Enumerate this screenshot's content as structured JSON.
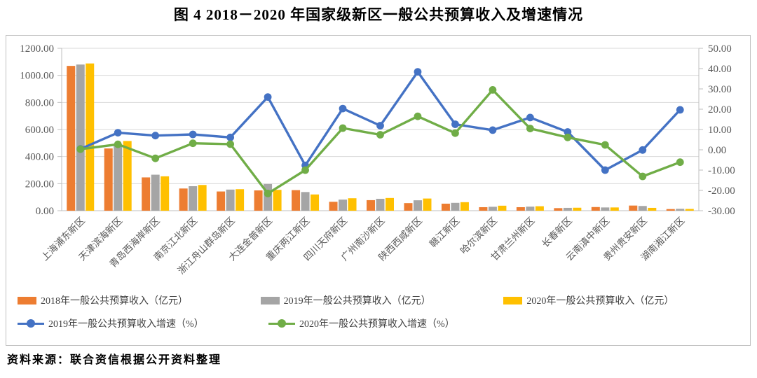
{
  "title": "图 4  2018－2020 年国家级新区一般公共预算收入及增速情况",
  "source_note": "资料来源：联合资信根据公开资料整理",
  "colors": {
    "bar_2018": "#ED7D31",
    "bar_2019": "#A5A5A5",
    "bar_2020": "#FFC000",
    "line_2019": "#4472C4",
    "line_2020": "#70AD47",
    "gridline": "#D9D9D9",
    "axis_line": "#BFBFBF",
    "tick_label": "#595959",
    "chart_border": "#BFBFBF"
  },
  "chart_data": {
    "type": "bar",
    "subtype": "combo-bar-line-dual-axis",
    "title": "图 4  2018－2020 年国家级新区一般公共预算收入及增速情况",
    "categories": [
      "上海浦东新区",
      "天津滨海新区",
      "青岛西海岸新区",
      "南京江北新区",
      "浙江舟山群岛新区",
      "大连金普新区",
      "重庆两江新区",
      "四川天府新区",
      "广州南沙新区",
      "陕西西咸新区",
      "赣江新区",
      "哈尔滨新区",
      "甘肃兰州新区",
      "长春新区",
      "云南滇中新区",
      "贵州贵安新区",
      "湖南湘江新区"
    ],
    "series": [
      {
        "name": "2018年一般公共预算收入（亿元）",
        "axis": "left",
        "kind": "bar",
        "color_key": "bar_2018",
        "values": [
          1070,
          460,
          246,
          164,
          142,
          150,
          152,
          66,
          78,
          56,
          52,
          26,
          26,
          19,
          27,
          38,
          12
        ]
      },
      {
        "name": "2019年一般公共预算收入（亿元）",
        "axis": "left",
        "kind": "bar",
        "color_key": "bar_2019",
        "values": [
          1080,
          492,
          266,
          181,
          156,
          197,
          138,
          82,
          88,
          77,
          58,
          29,
          30,
          21,
          24,
          35,
          14
        ]
      },
      {
        "name": "2020年一般公共预算收入（亿元）",
        "axis": "left",
        "kind": "bar",
        "color_key": "bar_2020",
        "values": [
          1088,
          515,
          254,
          190,
          159,
          154,
          120,
          92,
          94,
          90,
          63,
          37,
          33,
          22,
          24,
          21,
          13
        ]
      },
      {
        "name": "2019年一般公共预算收入增速（%）",
        "axis": "right",
        "kind": "line",
        "color_key": "line_2019",
        "values": [
          0.4,
          8.4,
          7.0,
          7.6,
          6.1,
          26.0,
          -7.7,
          20.3,
          11.9,
          38.4,
          12.6,
          9.7,
          15.9,
          8.8,
          -10.0,
          -0.1,
          19.7
        ]
      },
      {
        "name": "2020年一般公共预算收入增速（%）",
        "axis": "right",
        "kind": "line",
        "color_key": "line_2020",
        "values": [
          0.3,
          2.7,
          -4.2,
          3.2,
          2.8,
          -21.5,
          -10.0,
          10.7,
          7.4,
          16.5,
          8.2,
          29.5,
          10.5,
          6.1,
          2.4,
          -13.1,
          -6.1
        ]
      }
    ],
    "left_axis": {
      "min": 0,
      "max": 1200,
      "step": 200,
      "ticks": [
        "1200.00",
        "1000.00",
        "800.00",
        "600.00",
        "400.00",
        "200.00",
        "0.00"
      ]
    },
    "right_axis": {
      "min": -30,
      "max": 50,
      "step": 10,
      "ticks": [
        "50.00",
        "40.00",
        "30.00",
        "20.00",
        "10.00",
        "0.00",
        "-10.00",
        "-20.00",
        "-30.00"
      ]
    },
    "grid": true,
    "legend_position": "bottom",
    "x_label_rotation": -45
  }
}
